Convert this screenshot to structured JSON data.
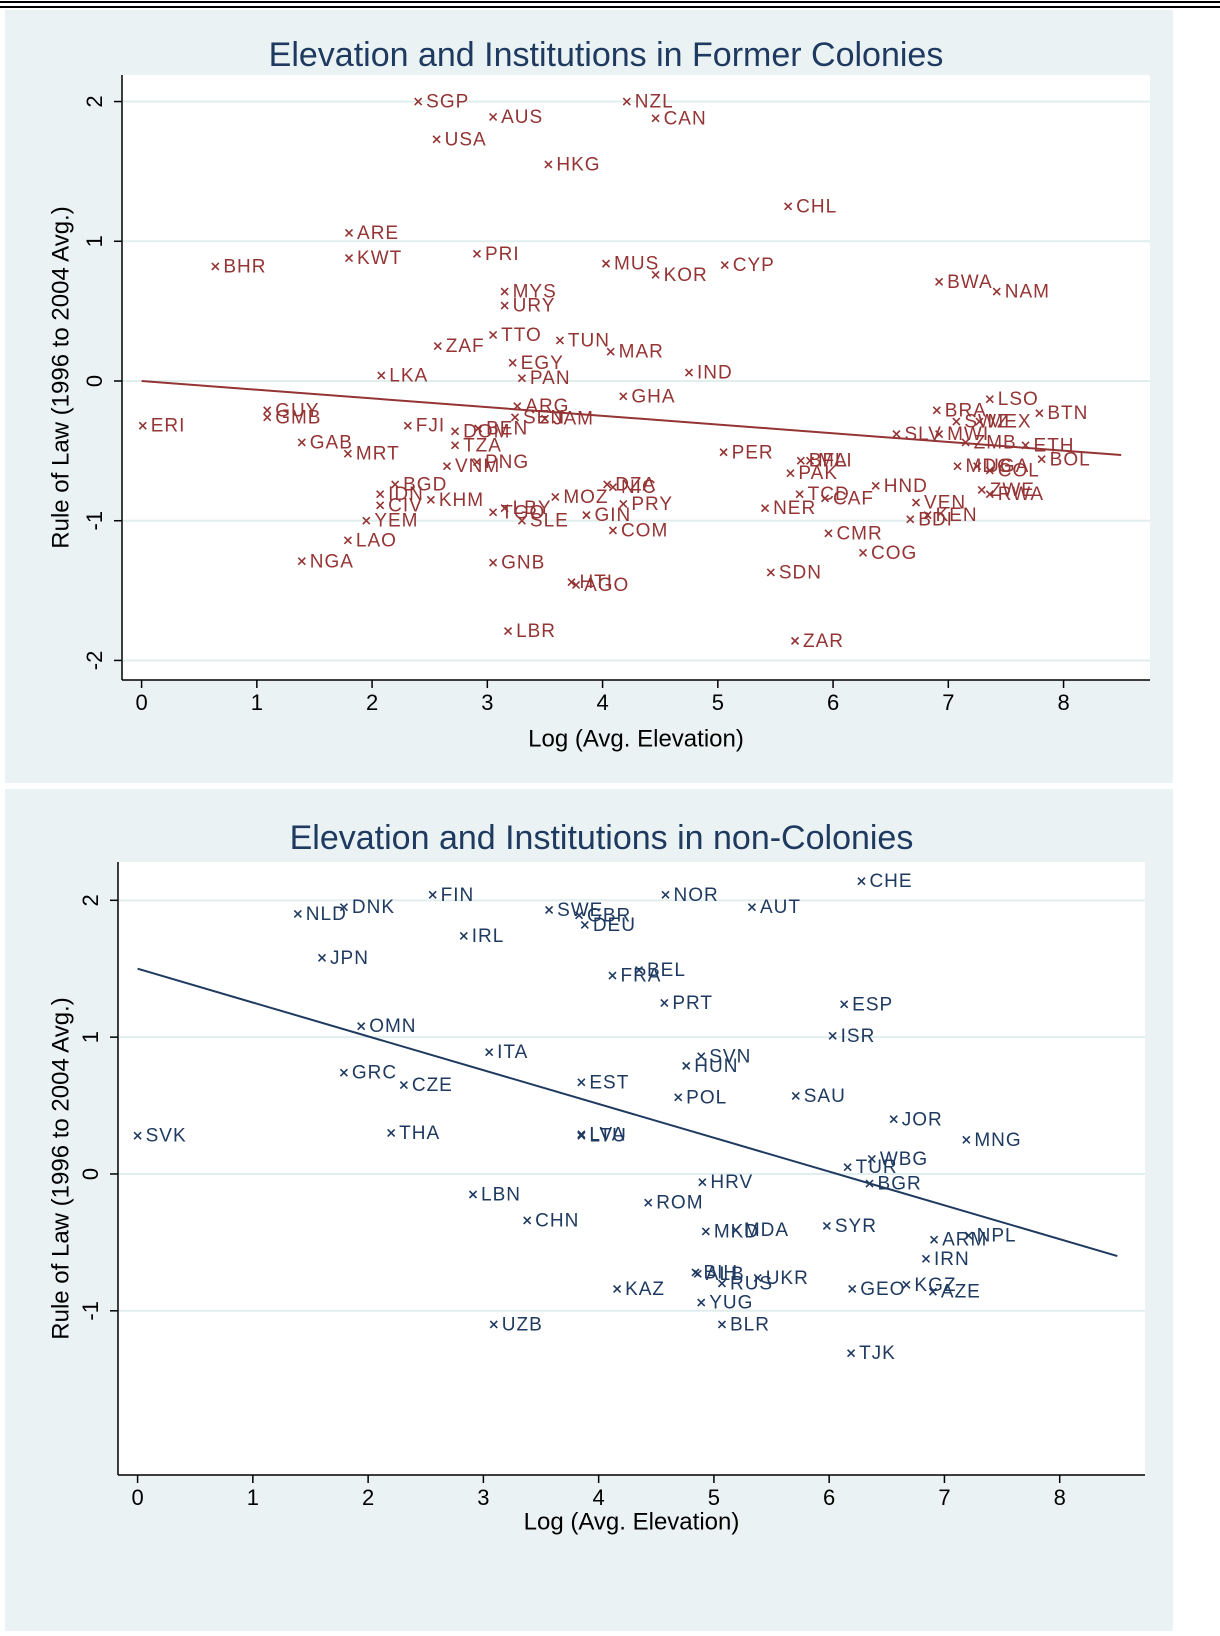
{
  "chart_data": [
    {
      "type": "scatter",
      "title": "Elevation and Institutions in Former Colonies",
      "x_label": "Log (Avg. Elevation)",
      "y_label": "Rule of Law (1996 to 2004 Avg.)",
      "color": "#943434",
      "grid": true,
      "xlim": [
        -0.17,
        8.75
      ],
      "ylim": [
        -2.14,
        2.19
      ],
      "xticks": [
        0,
        1,
        2,
        3,
        4,
        5,
        6,
        7,
        8
      ],
      "yticks": [
        -2,
        -1,
        0,
        1,
        2
      ],
      "labels": [
        "SGP",
        "AUS",
        "NZL",
        "CAN",
        "USA",
        "HKG",
        "CHL",
        "ARE",
        "KWT",
        "BHR",
        "PRI",
        "MUS",
        "KOR",
        "CYP",
        "MYS",
        "URY",
        "BWA",
        "NAM",
        "TTO",
        "TUN",
        "ZAF",
        "MAR",
        "EGY",
        "IND",
        "PAN",
        "LKA",
        "GHA",
        "ARG",
        "SEN",
        "JAM",
        "LSO",
        "BTN",
        "BRA",
        "SWZ",
        "MEX",
        "ERI",
        "GUY",
        "GMB",
        "FJI",
        "BEN",
        "DOM",
        "TZA",
        "GAB",
        "SLV",
        "MWI",
        "ZMB",
        "ETH",
        "BOL",
        "PER",
        "MRT",
        "BFA",
        "MLI",
        "PAK",
        "PNG",
        "VNM",
        "MDG",
        "UGA",
        "COL",
        "HND",
        "BGD",
        "DZA",
        "NIC",
        "IDN",
        "TCD",
        "CIV",
        "KHM",
        "CAF",
        "ZWE",
        "RWA",
        "VEN",
        "KEN",
        "MOZ",
        "PRY",
        "TGO",
        "LBY",
        "SLE",
        "GIN",
        "NER",
        "YEM",
        "BDI",
        "COM",
        "CMR",
        "LAO",
        "COG",
        "NGA",
        "GNB",
        "SDN",
        "HTI",
        "AGO",
        "LBR",
        "ZAR"
      ],
      "x": [
        2.4,
        3.05,
        4.21,
        4.46,
        2.56,
        3.53,
        5.61,
        1.8,
        1.8,
        0.64,
        2.91,
        4.03,
        4.46,
        5.06,
        3.15,
        3.15,
        6.92,
        7.42,
        3.05,
        3.63,
        2.57,
        4.07,
        3.22,
        4.75,
        3.3,
        2.08,
        4.18,
        3.26,
        3.24,
        3.5,
        7.36,
        7.79,
        6.9,
        7.07,
        7.27,
        0.01,
        1.09,
        1.09,
        2.31,
        2.92,
        2.72,
        2.72,
        1.39,
        6.55,
        6.92,
        7.15,
        7.67,
        7.81,
        5.05,
        1.79,
        5.72,
        5.8,
        5.63,
        2.91,
        2.65,
        7.08,
        7.25,
        7.36,
        6.37,
        2.2,
        4.04,
        4.09,
        2.07,
        5.71,
        2.07,
        2.51,
        5.93,
        7.29,
        7.36,
        6.72,
        6.82,
        3.59,
        4.18,
        3.05,
        3.15,
        3.3,
        3.86,
        5.41,
        1.95,
        6.67,
        4.09,
        5.96,
        1.79,
        6.26,
        1.39,
        3.05,
        5.46,
        3.73,
        3.77,
        3.18,
        5.67
      ],
      "values": [
        2.0,
        1.89,
        2.0,
        1.88,
        1.73,
        1.55,
        1.25,
        1.06,
        0.88,
        0.82,
        0.91,
        0.84,
        0.76,
        0.83,
        0.64,
        0.54,
        0.71,
        0.64,
        0.33,
        0.29,
        0.25,
        0.21,
        0.13,
        0.06,
        0.02,
        0.04,
        -0.11,
        -0.18,
        -0.26,
        -0.27,
        -0.13,
        -0.23,
        -0.21,
        -0.29,
        -0.29,
        -0.32,
        -0.21,
        -0.26,
        -0.32,
        -0.34,
        -0.36,
        -0.46,
        -0.44,
        -0.38,
        -0.38,
        -0.44,
        -0.46,
        -0.56,
        -0.51,
        -0.52,
        -0.57,
        -0.57,
        -0.66,
        -0.58,
        -0.61,
        -0.61,
        -0.61,
        -0.64,
        -0.75,
        -0.74,
        -0.74,
        -0.76,
        -0.81,
        -0.81,
        -0.89,
        -0.85,
        -0.84,
        -0.78,
        -0.81,
        -0.87,
        -0.96,
        -0.83,
        -0.88,
        -0.94,
        -0.91,
        -1.0,
        -0.96,
        -0.91,
        -1.0,
        -0.99,
        -1.07,
        -1.09,
        -1.14,
        -1.23,
        -1.29,
        -1.3,
        -1.37,
        -1.44,
        -1.46,
        -1.79,
        -1.86
      ],
      "fit_line": {
        "x": [
          0,
          8.5
        ],
        "values": [
          0.0,
          -0.53
        ]
      }
    },
    {
      "type": "scatter",
      "title": "Elevation and Institutions in non-Colonies",
      "x_label": "Log (Avg. Elevation)",
      "y_label": "Rule of Law (1996 to 2004 Avg.)",
      "color": "#1f3a60",
      "grid": true,
      "xlim": [
        -0.17,
        8.74
      ],
      "ylim": [
        -2.2,
        2.28
      ],
      "xticks": [
        0,
        1,
        2,
        3,
        4,
        5,
        6,
        7,
        8
      ],
      "yticks": [
        -1,
        0,
        1,
        2
      ],
      "labels": [
        "CHE",
        "FIN",
        "NOR",
        "DNK",
        "AUT",
        "NLD",
        "SWE",
        "GBR",
        "DEU",
        "IRL",
        "JPN",
        "BEL",
        "FRA",
        "PRT",
        "ESP",
        "ISR",
        "OMN",
        "ITA",
        "SVN",
        "HUN",
        "GRC",
        "CZE",
        "EST",
        "SAU",
        "POL",
        "JOR",
        "SVK",
        "THA",
        "LTU",
        "LVA",
        "MNG",
        "WBG",
        "TUR",
        "BGR",
        "HRV",
        "LBN",
        "ROM",
        "CHN",
        "SYR",
        "MKD",
        "MDA",
        "NPL",
        "ARM",
        "IRN",
        "ALB",
        "BIH",
        "UKR",
        "RUS",
        "KAZ",
        "GEO",
        "KGZ",
        "AZE",
        "YUG",
        "UZB",
        "BLR",
        "TJK"
      ],
      "x": [
        6.28,
        2.56,
        4.58,
        1.79,
        5.33,
        1.39,
        3.57,
        3.83,
        3.88,
        2.83,
        1.6,
        4.35,
        4.12,
        4.57,
        6.13,
        6.03,
        1.94,
        3.05,
        4.89,
        4.76,
        1.79,
        2.31,
        3.85,
        5.71,
        4.69,
        6.56,
        0.0,
        2.2,
        3.85,
        3.85,
        7.19,
        6.37,
        6.16,
        6.35,
        4.9,
        2.91,
        4.43,
        3.38,
        5.98,
        4.93,
        5.19,
        7.21,
        6.91,
        6.84,
        4.86,
        4.84,
        5.38,
        5.07,
        4.16,
        6.2,
        6.67,
        6.9,
        4.89,
        3.09,
        5.07,
        6.19
      ],
      "values": [
        2.14,
        2.04,
        2.04,
        1.95,
        1.95,
        1.9,
        1.93,
        1.89,
        1.82,
        1.74,
        1.58,
        1.49,
        1.45,
        1.25,
        1.24,
        1.01,
        1.08,
        0.89,
        0.86,
        0.79,
        0.74,
        0.65,
        0.67,
        0.57,
        0.56,
        0.4,
        0.28,
        0.3,
        0.28,
        0.29,
        0.25,
        0.11,
        0.05,
        -0.07,
        -0.06,
        -0.15,
        -0.21,
        -0.34,
        -0.38,
        -0.42,
        -0.41,
        -0.45,
        -0.48,
        -0.62,
        -0.73,
        -0.72,
        -0.76,
        -0.8,
        -0.84,
        -0.84,
        -0.81,
        -0.86,
        -0.94,
        -1.1,
        -1.1,
        -1.31
      ],
      "fit_line": {
        "x": [
          0,
          8.5
        ],
        "values": [
          1.5,
          -0.6
        ]
      }
    }
  ]
}
